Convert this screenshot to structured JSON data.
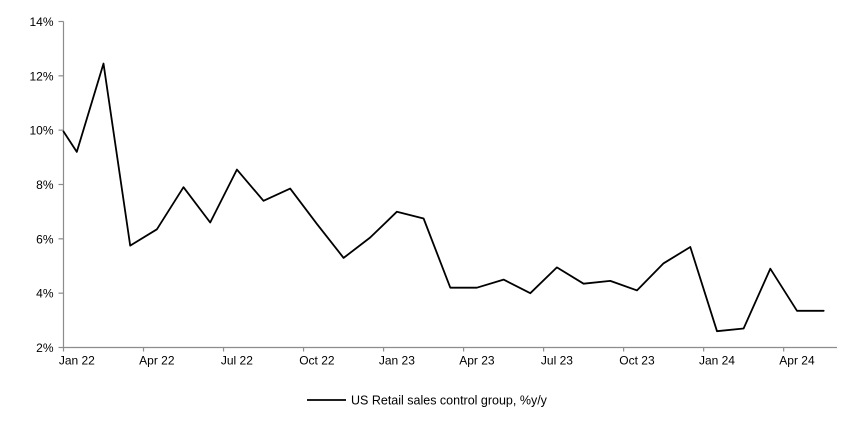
{
  "chart_data": {
    "type": "line",
    "title": "",
    "legend": "US Retail sales control group, %y/y",
    "legend_position": "bottom-center",
    "grid": "off",
    "series_color": "#000000",
    "axis_color": "#8c8c8c",
    "ylim": [
      2,
      14
    ],
    "y_tick_labels": [
      "2%",
      "4%",
      "6%",
      "8%",
      "10%",
      "12%",
      "14%"
    ],
    "y_tick_values": [
      2,
      4,
      6,
      8,
      10,
      12,
      14
    ],
    "x_tick_labels": [
      "Jan 22",
      "Apr 22",
      "Jul 22",
      "Oct 22",
      "Jan 23",
      "Apr 23",
      "Jul 23",
      "Oct 23",
      "Jan 24",
      "Apr 24"
    ],
    "x_tick_every": 3,
    "categories": [
      "Jan 22",
      "Feb 22",
      "Mar 22",
      "Apr 22",
      "May 22",
      "Jun 22",
      "Jul 22",
      "Aug 22",
      "Sep 22",
      "Oct 22",
      "Nov 22",
      "Dec 22",
      "Jan 23",
      "Feb 23",
      "Mar 23",
      "Apr 23",
      "May 23",
      "Jun 23",
      "Jul 23",
      "Aug 23",
      "Sep 23",
      "Oct 23",
      "Nov 23",
      "Dec 23",
      "Jan 24",
      "Feb 24",
      "Mar 24",
      "Apr 24",
      "May 24"
    ],
    "values": [
      9.2,
      12.45,
      5.75,
      6.35,
      7.9,
      6.6,
      8.55,
      7.4,
      7.85,
      6.55,
      5.3,
      6.05,
      7.0,
      6.75,
      4.2,
      4.2,
      4.5,
      4.0,
      4.95,
      4.35,
      4.45,
      4.1,
      5.1,
      5.7,
      2.6,
      2.7,
      4.9,
      3.35,
      3.35
    ],
    "left_edge_entry_value": 9.95
  }
}
